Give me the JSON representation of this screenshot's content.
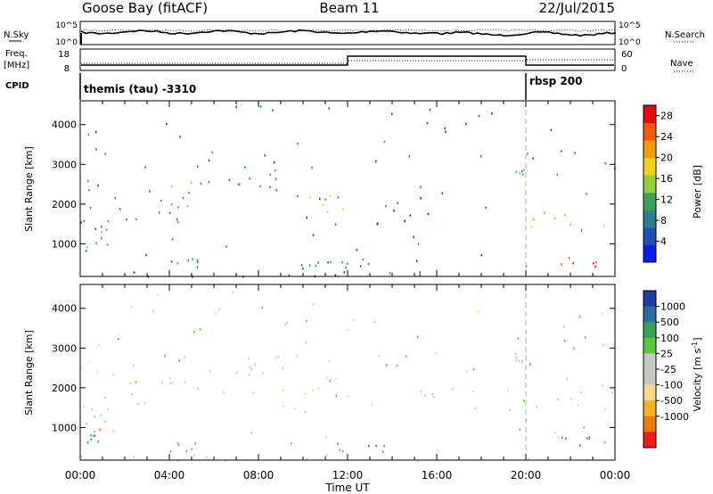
{
  "header": {
    "station": "Goose Bay (fitACF)",
    "beam": "Beam 11",
    "date": "22/Jul/2015"
  },
  "top_panels": {
    "nsky_label": "N.Sky",
    "nsky_ticks": [
      "10^5",
      "10^0"
    ],
    "nsearch_label": "N.Search",
    "nsearch_ticks": [
      "10^5",
      "10^0"
    ],
    "freq_label_1": "Freq.",
    "freq_label_2": "[MHz]",
    "freq_ticks": [
      "18",
      "8"
    ],
    "nave_label": "Nave",
    "nave_ticks": [
      "60",
      "0"
    ],
    "cpid_label": "CPID",
    "cpid_segments": [
      {
        "start": 0,
        "end": 20,
        "text": "themis (tau) -3310"
      },
      {
        "start": 20,
        "end": 24,
        "text": "rbsp 200"
      }
    ]
  },
  "colors": {
    "power_scale": [
      "#0a1ee6",
      "#1f4fb4",
      "#2e7d8c",
      "#3aa05a",
      "#8fcf3a",
      "#f2d21e",
      "#f59a0f",
      "#f05a0a",
      "#e60a0a"
    ],
    "velocity_scale": [
      "#ee1c1c",
      "#f07a14",
      "#f6b21e",
      "#f4d98a",
      "#c8c8c2",
      "#c8c8c2",
      "#58c83c",
      "#3aa05a",
      "#2a6ea0",
      "#1e3ca8"
    ]
  },
  "chart_data": [
    {
      "type": "heatmap",
      "title": "Power",
      "xlabel": "",
      "ylabel": "Slant Range [km]",
      "x_unit": "hours UT",
      "xlim": [
        0,
        24
      ],
      "ylim": [
        180,
        4600
      ],
      "x_tick_labels": [
        "00:00",
        "04:00",
        "08:00",
        "12:00",
        "16:00",
        "20:00",
        "00:00"
      ],
      "y_ticks": [
        1000,
        2000,
        3000,
        4000
      ],
      "colorbar_label": "Power [dB]",
      "colorbar_ticks": [
        4,
        8,
        12,
        16,
        20,
        24,
        28
      ],
      "colorbar_range": [
        0,
        30
      ],
      "regions": [
        {
          "t0": 0.0,
          "t1": 1.6,
          "r0": 900,
          "r1": 2500,
          "value": 8
        },
        {
          "t0": 0.2,
          "t1": 1.2,
          "r0": 700,
          "r1": 1400,
          "value": 12
        },
        {
          "t0": 1.8,
          "t1": 5.0,
          "r0": 1500,
          "r1": 2200,
          "value": 9
        },
        {
          "t0": 4.0,
          "t1": 8.5,
          "r0": 1900,
          "r1": 2600,
          "value": 14
        },
        {
          "t0": 7.5,
          "t1": 9.2,
          "r0": 2300,
          "r1": 2900,
          "value": 10
        },
        {
          "t0": 9.0,
          "t1": 12.0,
          "r0": 1500,
          "r1": 2300,
          "value": 15
        },
        {
          "t0": 13.0,
          "t1": 18.5,
          "r0": 1500,
          "r1": 2000,
          "value": 6
        },
        {
          "t0": 19.5,
          "t1": 20.0,
          "r0": 2650,
          "r1": 2900,
          "value": 12
        },
        {
          "t0": 20.0,
          "t1": 24.0,
          "r0": 1450,
          "r1": 2000,
          "value": 17
        },
        {
          "t0": 21.5,
          "t1": 23.5,
          "r0": 450,
          "r1": 800,
          "value": 24
        },
        {
          "t0": 3.5,
          "t1": 5.5,
          "r0": 400,
          "r1": 650,
          "value": 7
        },
        {
          "t0": 9.5,
          "t1": 11.5,
          "r0": 350,
          "r1": 600,
          "value": 8
        },
        {
          "t0": 11.0,
          "t1": 14.0,
          "r0": 350,
          "r1": 650,
          "value": 10
        },
        {
          "t0": 0.0,
          "t1": 24.0,
          "r0": 180,
          "r1": 330,
          "value": 5
        }
      ]
    },
    {
      "type": "heatmap",
      "title": "Velocity",
      "xlabel": "Time UT",
      "ylabel": "Slant Range [km]",
      "x_unit": "hours UT",
      "xlim": [
        0,
        24
      ],
      "ylim": [
        180,
        4600
      ],
      "x_tick_labels": [
        "00:00",
        "04:00",
        "08:00",
        "12:00",
        "16:00",
        "20:00",
        "00:00"
      ],
      "y_ticks": [
        1000,
        2000,
        3000,
        4000
      ],
      "colorbar_label": "Velocity [m s^-1]",
      "colorbar_ticks": [
        "1000",
        "500",
        "100",
        "25",
        "-25",
        "-100",
        "-500",
        "-1000"
      ],
      "regions": [
        {
          "t0": 0.0,
          "t1": 1.6,
          "r0": 900,
          "r1": 2500,
          "value": 0
        },
        {
          "t0": 0.2,
          "t1": 1.2,
          "r0": 900,
          "r1": 1400,
          "value": -300
        },
        {
          "t0": 0.2,
          "t1": 0.8,
          "r0": 650,
          "r1": 900,
          "value": 150
        },
        {
          "t0": 1.8,
          "t1": 5.0,
          "r0": 1500,
          "r1": 2200,
          "value": 0
        },
        {
          "t0": 4.0,
          "t1": 8.5,
          "r0": 1900,
          "r1": 2600,
          "value": 0
        },
        {
          "t0": 7.5,
          "t1": 9.2,
          "r0": 2300,
          "r1": 2900,
          "value": 0
        },
        {
          "t0": 9.0,
          "t1": 12.0,
          "r0": 1500,
          "r1": 2300,
          "value": -50
        },
        {
          "t0": 13.0,
          "t1": 18.5,
          "r0": 1500,
          "r1": 2000,
          "value": 0
        },
        {
          "t0": 19.5,
          "t1": 20.0,
          "r0": 2650,
          "r1": 2900,
          "value": 0
        },
        {
          "t0": 20.0,
          "t1": 24.0,
          "r0": 1450,
          "r1": 2000,
          "value": 0
        },
        {
          "t0": 21.5,
          "t1": 23.5,
          "r0": 450,
          "r1": 800,
          "value": 150
        },
        {
          "t0": 3.5,
          "t1": 5.5,
          "r0": 400,
          "r1": 650,
          "value": 60
        },
        {
          "t0": 11.0,
          "t1": 14.0,
          "r0": 350,
          "r1": 650,
          "value": 120
        },
        {
          "t0": 0.0,
          "t1": 24.0,
          "r0": 180,
          "r1": 330,
          "value": 0
        }
      ]
    }
  ]
}
